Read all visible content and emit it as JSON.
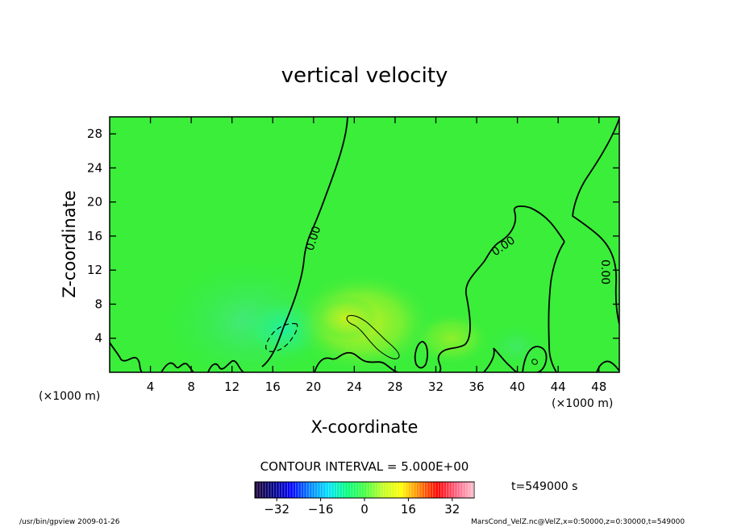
{
  "chart_data": {
    "type": "heatmap",
    "title": "vertical velocity",
    "xlabel": "X-coordinate",
    "ylabel": "Z-coordinate",
    "x_unit_left": "(×1000 m)",
    "x_unit_right": "(×1000 m)",
    "xlim": [
      0,
      50
    ],
    "ylim": [
      0,
      30
    ],
    "x_ticks": [
      4,
      8,
      12,
      16,
      20,
      24,
      28,
      32,
      36,
      40,
      44,
      48
    ],
    "y_ticks": [
      4,
      8,
      12,
      16,
      20,
      24,
      28
    ],
    "contour_interval_text": "CONTOUR INTERVAL = 5.000E+00",
    "contour_labels": [
      "0.00",
      "0.00",
      "0.00"
    ],
    "colorbar": {
      "min": -40,
      "max": 40,
      "ticks": [
        -32,
        -16,
        0,
        16,
        32
      ],
      "colors": [
        "#1a0033",
        "#000080",
        "#0000ff",
        "#0080ff",
        "#00e0ff",
        "#00ff80",
        "#40ff40",
        "#c0ff20",
        "#ffff00",
        "#ff8000",
        "#ff0000",
        "#ff6080",
        "#ffc0d0"
      ]
    },
    "time_label": "t=549000 s",
    "grid": false,
    "legend": "colorbar-bottom"
  },
  "footer": {
    "left": "/usr/bin/gpview  2009-01-26",
    "right": "MarsCond_VelZ.nc@VelZ,x=0:50000,z=0:30000,t=549000"
  }
}
